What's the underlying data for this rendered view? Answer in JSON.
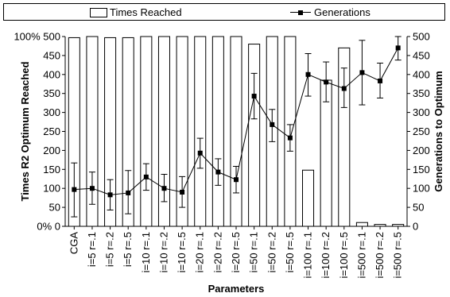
{
  "chart_data": {
    "type": "bar+line",
    "categories": [
      "CGA",
      "i=5 r=.1",
      "i=5 r=.2",
      "i=5 r=.5",
      "i=10 r=.1",
      "i=10 r=.2",
      "i=10 r=.5",
      "i=20 r=.1",
      "i=20 r=.2",
      "i=20 r=.5",
      "i=50 r=.1",
      "i=50 r=.2",
      "i=50 r=.5",
      "i=100 r=.1",
      "i=100 r=.2",
      "i=100 r=.5",
      "i=500 r=.1",
      "i=500 r=.2",
      "i=500 r=.5"
    ],
    "series": [
      {
        "name": "Times Reached",
        "kind": "bar",
        "axis": "left",
        "values": [
          497,
          500,
          497,
          497,
          500,
          500,
          500,
          500,
          500,
          500,
          480,
          500,
          500,
          148,
          385,
          470,
          10,
          5,
          5
        ]
      },
      {
        "name": "Generations",
        "kind": "line",
        "axis": "right",
        "values": [
          97,
          100,
          83,
          88,
          130,
          100,
          90,
          193,
          143,
          123,
          343,
          268,
          233,
          400,
          380,
          363,
          405,
          383,
          470
        ],
        "error_low": [
          25,
          58,
          43,
          33,
          95,
          65,
          50,
          153,
          108,
          88,
          283,
          223,
          198,
          343,
          328,
          313,
          320,
          338,
          438
        ],
        "error_high": [
          167,
          143,
          123,
          147,
          165,
          137,
          131,
          232,
          178,
          158,
          403,
          308,
          268,
          455,
          433,
          417,
          490,
          430,
          500
        ]
      }
    ],
    "xlabel": "Parameters",
    "ylabel_left": "Times R2 Optimum Reached",
    "ylabel_right": "Generations to Optimum",
    "ylim_left": [
      0,
      500
    ],
    "ylim_right": [
      0,
      500
    ],
    "left_ticks": [
      "0% 0",
      "50",
      "100",
      "150",
      "200",
      "250",
      "300",
      "350",
      "400",
      "450",
      "100% 500"
    ],
    "right_ticks": [
      "0",
      "50",
      "100",
      "150",
      "200",
      "250",
      "300",
      "350",
      "400",
      "450",
      "500"
    ],
    "grid": false,
    "legend_position": "top"
  }
}
